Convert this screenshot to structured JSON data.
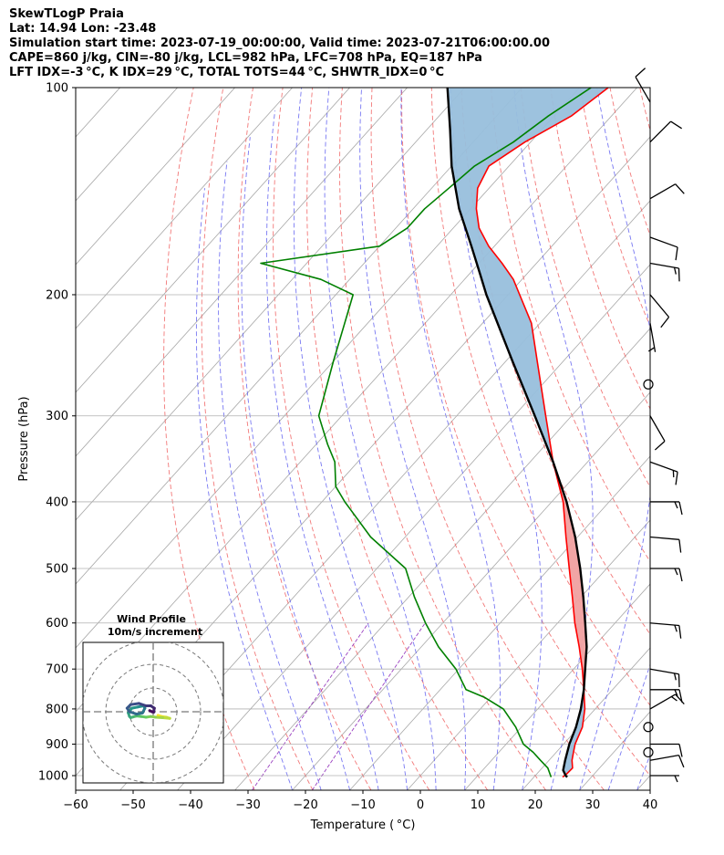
{
  "header": {
    "line1": "SkewTLogP Praia",
    "line2": "Lat: 14.94   Lon: -23.48",
    "line3": "Simulation start time: 2023-07-19_00:00:00, Valid time: 2023-07-21T06:00:00.00",
    "line4": "CAPE=860 j/kg, CIN=-80 j/kg, LCL=982 hPa, LFC=708 hPa, EQ=187 hPa",
    "line5": "LFT IDX=-3 °C, K IDX=29 °C, TOTAL TOTS=44 °C, SHWTR_IDX=0 °C"
  },
  "colors": {
    "temperature": "#ff0000",
    "dewpoint": "#008000",
    "parcel": "#000000",
    "cape_fill": "#f0a0a0",
    "cin_fill": "#98bfdc",
    "dry_adiabat": "#f06060",
    "moist_adiabat": "#6060f0",
    "mixing_ratio": "#9a40c0",
    "isotherm": "#a8a8a8",
    "grid": "#b0b0b0"
  },
  "chart_data": {
    "type": "line",
    "xlabel": "Temperature ( °C)",
    "ylabel": "Pressure (hPa)",
    "xlim": [
      -60,
      40
    ],
    "ylim": [
      1050,
      100
    ],
    "y_scale": "log",
    "x_ticks": [
      -60,
      -50,
      -40,
      -30,
      -20,
      -10,
      0,
      10,
      20,
      30,
      40
    ],
    "x_tick_labels": [
      "−60",
      "−50",
      "−40",
      "−30",
      "−20",
      "−10",
      "0",
      "10",
      "20",
      "30",
      "40"
    ],
    "y_ticks": [
      100,
      200,
      300,
      400,
      500,
      600,
      700,
      800,
      900,
      1000
    ],
    "y_tick_labels": [
      "100",
      "200",
      "300",
      "400",
      "500",
      "600",
      "700",
      "800",
      "900",
      "1000"
    ],
    "grid": true,
    "series": [
      {
        "name": "Temperature",
        "pressure": [
          1005,
          995,
          975,
          950,
          925,
          900,
          850,
          800,
          750,
          700,
          650,
          600,
          550,
          500,
          450,
          400,
          350,
          300,
          250,
          220,
          200,
          190,
          180,
          170,
          160,
          150,
          140,
          130,
          120,
          110,
          100
        ],
        "temperature": [
          25.0,
          25.2,
          25.3,
          24.0,
          23.0,
          22.0,
          20.6,
          18.2,
          15.0,
          11.5,
          7.5,
          3.0,
          -1.5,
          -6.5,
          -12.0,
          -18.0,
          -26.0,
          -34.5,
          -44.5,
          -51.5,
          -58.0,
          -61.5,
          -66.0,
          -71.0,
          -75.5,
          -79.0,
          -82.0,
          -83.5,
          -81.0,
          -77.0,
          -75.0
        ]
      },
      {
        "name": "Dewpoint",
        "pressure": [
          1005,
          975,
          950,
          925,
          900,
          850,
          800,
          770,
          750,
          700,
          650,
          600,
          550,
          500,
          450,
          400,
          380,
          350,
          330,
          300,
          250,
          220,
          200,
          190,
          180,
          170,
          160,
          150,
          140,
          130,
          120,
          110,
          100
        ],
        "dewpoint": [
          23.0,
          21.0,
          18.5,
          16.0,
          13.0,
          9.0,
          4.0,
          -1.0,
          -5.5,
          -10.5,
          -17.0,
          -23.0,
          -29.0,
          -35.0,
          -46.0,
          -56.0,
          -60.0,
          -64.0,
          -68.0,
          -74.0,
          -80.0,
          -84.0,
          -87.0,
          -95.0,
          -108.0,
          -90.0,
          -88.0,
          -88.0,
          -87.0,
          -86.0,
          -83.0,
          -81.0,
          -78.0
        ]
      },
      {
        "name": "Parcel",
        "pressure": [
          1005,
          1000,
          982,
          950,
          900,
          850,
          800,
          750,
          708,
          650,
          600,
          550,
          500,
          450,
          400,
          350,
          300,
          250,
          200,
          187,
          170,
          150,
          130,
          115,
          100
        ],
        "temperature": [
          25.8,
          25.3,
          24.0,
          22.8,
          21.0,
          19.5,
          17.5,
          15.0,
          12.5,
          8.8,
          4.8,
          0.4,
          -4.6,
          -10.4,
          -17.4,
          -26.0,
          -36.4,
          -48.8,
          -63.8,
          -68.0,
          -74.0,
          -82.0,
          -90.0,
          -96.0,
          -103.0
        ]
      }
    ],
    "wind_barbs": [
      {
        "pressure": 1000,
        "speed_kt": 5,
        "direction_deg": 90
      },
      {
        "pressure": 950,
        "speed_kt": 10,
        "direction_deg": 80
      },
      {
        "pressure": 925,
        "speed_kt": 0,
        "direction_deg": 0
      },
      {
        "pressure": 900,
        "speed_kt": 10,
        "direction_deg": 90
      },
      {
        "pressure": 850,
        "speed_kt": 0,
        "direction_deg": 0
      },
      {
        "pressure": 800,
        "speed_kt": 15,
        "direction_deg": 60
      },
      {
        "pressure": 750,
        "speed_kt": 15,
        "direction_deg": 90
      },
      {
        "pressure": 700,
        "speed_kt": 15,
        "direction_deg": 100
      },
      {
        "pressure": 600,
        "speed_kt": 15,
        "direction_deg": 95
      },
      {
        "pressure": 500,
        "speed_kt": 15,
        "direction_deg": 90
      },
      {
        "pressure": 450,
        "speed_kt": 10,
        "direction_deg": 95
      },
      {
        "pressure": 400,
        "speed_kt": 15,
        "direction_deg": 90
      },
      {
        "pressure": 350,
        "speed_kt": 15,
        "direction_deg": 110
      },
      {
        "pressure": 300,
        "speed_kt": 10,
        "direction_deg": 150
      },
      {
        "pressure": 270,
        "speed_kt": 0,
        "direction_deg": 0
      },
      {
        "pressure": 220,
        "speed_kt": 5,
        "direction_deg": 170
      },
      {
        "pressure": 200,
        "speed_kt": 10,
        "direction_deg": 140
      },
      {
        "pressure": 180,
        "speed_kt": 15,
        "direction_deg": 100
      },
      {
        "pressure": 165,
        "speed_kt": 10,
        "direction_deg": 110
      },
      {
        "pressure": 145,
        "speed_kt": 10,
        "direction_deg": 60
      },
      {
        "pressure": 120,
        "speed_kt": 10,
        "direction_deg": 45
      },
      {
        "pressure": 105,
        "speed_kt": 10,
        "direction_deg": 330
      }
    ],
    "hodograph": {
      "title": "Wind Profile",
      "subtitle": "10m/s increment",
      "rings_ms": [
        10,
        20,
        30
      ],
      "u": [
        2.0,
        3.5,
        5.5,
        7.0,
        4.0,
        1.0,
        -1.0,
        -3.0,
        -5.0,
        -7.0,
        -8.5,
        -9.5,
        -10.0,
        -10.5,
        -9.0,
        -6.5,
        -4.0,
        -3.5,
        -4.5,
        -7.0,
        -10.0,
        -11.0,
        -9.5,
        -6.0,
        -3.0,
        -1.0,
        0.5,
        0.2,
        -0.5,
        -1.5
      ],
      "v": [
        -1.5,
        -2.0,
        -2.3,
        -2.8,
        -2.5,
        -2.3,
        -2.0,
        -2.3,
        -2.0,
        -1.8,
        -2.2,
        -2.5,
        -2.0,
        -0.5,
        1.5,
        2.0,
        2.5,
        1.5,
        -0.5,
        -1.0,
        0.0,
        1.5,
        3.0,
        3.5,
        2.5,
        2.5,
        1.5,
        -0.2,
        0.0,
        0.5
      ]
    }
  }
}
